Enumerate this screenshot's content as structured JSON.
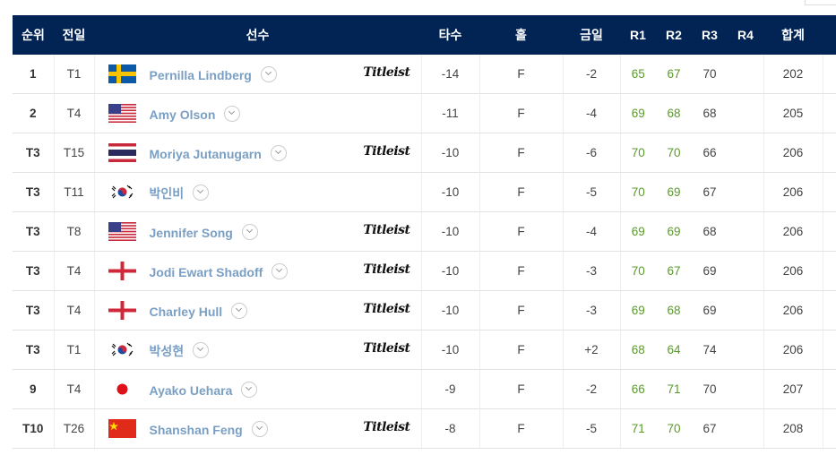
{
  "header": [
    "순위",
    "전일",
    "선수",
    "타수",
    "홀",
    "금일",
    "R1",
    "R2",
    "R3",
    "R4",
    "합계"
  ],
  "rows": [
    {
      "rank": "1",
      "prev": "T1",
      "flag": "sweden",
      "name": "Pernilla Lindberg",
      "sponsor": "Titleist",
      "score": "-14",
      "hole": "F",
      "today": "-2",
      "r1": "65",
      "r2": "67",
      "r3": "70",
      "r4": "",
      "total": "202"
    },
    {
      "rank": "2",
      "prev": "T4",
      "flag": "usa",
      "name": "Amy Olson",
      "sponsor": "",
      "score": "-11",
      "hole": "F",
      "today": "-4",
      "r1": "69",
      "r2": "68",
      "r3": "68",
      "r4": "",
      "total": "205"
    },
    {
      "rank": "T3",
      "prev": "T15",
      "flag": "thailand",
      "name": "Moriya Jutanugarn",
      "sponsor": "Titleist",
      "score": "-10",
      "hole": "F",
      "today": "-6",
      "r1": "70",
      "r2": "70",
      "r3": "66",
      "r4": "",
      "total": "206"
    },
    {
      "rank": "T3",
      "prev": "T11",
      "flag": "korea",
      "name": "박인비",
      "sponsor": "",
      "score": "-10",
      "hole": "F",
      "today": "-5",
      "r1": "70",
      "r2": "69",
      "r3": "67",
      "r4": "",
      "total": "206"
    },
    {
      "rank": "T3",
      "prev": "T8",
      "flag": "usa",
      "name": "Jennifer Song",
      "sponsor": "Titleist",
      "score": "-10",
      "hole": "F",
      "today": "-4",
      "r1": "69",
      "r2": "69",
      "r3": "68",
      "r4": "",
      "total": "206"
    },
    {
      "rank": "T3",
      "prev": "T4",
      "flag": "england",
      "name": "Jodi Ewart Shadoff",
      "sponsor": "Titleist",
      "score": "-10",
      "hole": "F",
      "today": "-3",
      "r1": "70",
      "r2": "67",
      "r3": "69",
      "r4": "",
      "total": "206"
    },
    {
      "rank": "T3",
      "prev": "T4",
      "flag": "england",
      "name": "Charley Hull",
      "sponsor": "Titleist",
      "score": "-10",
      "hole": "F",
      "today": "-3",
      "r1": "69",
      "r2": "68",
      "r3": "69",
      "r4": "",
      "total": "206"
    },
    {
      "rank": "T3",
      "prev": "T1",
      "flag": "korea",
      "name": "박성현",
      "sponsor": "Titleist",
      "score": "-10",
      "hole": "F",
      "today": "+2",
      "r1": "68",
      "r2": "64",
      "r3": "74",
      "r4": "",
      "total": "206"
    },
    {
      "rank": "9",
      "prev": "T4",
      "flag": "japan",
      "name": "Ayako Uehara",
      "sponsor": "",
      "score": "-9",
      "hole": "F",
      "today": "-2",
      "r1": "66",
      "r2": "71",
      "r3": "70",
      "r4": "",
      "total": "207"
    },
    {
      "rank": "T10",
      "prev": "T26",
      "flag": "china",
      "name": "Shanshan Feng",
      "sponsor": "Titleist",
      "score": "-8",
      "hole": "F",
      "today": "-5",
      "r1": "71",
      "r2": "70",
      "r3": "67",
      "r4": "",
      "total": "208"
    }
  ],
  "colors": {
    "header_bg": "#012454",
    "name": "#7a9fc4",
    "under_par_round": "#5a9a2a"
  }
}
